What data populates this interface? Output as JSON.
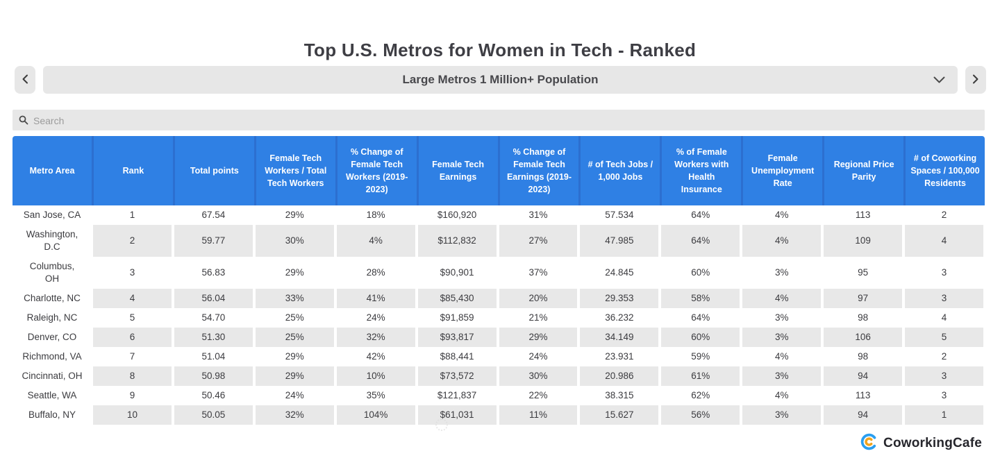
{
  "page": {
    "title": "Top U.S. Metros for Women in Tech - Ranked"
  },
  "selector": {
    "value": "Large Metros 1 Million+ Population",
    "prev_icon": "chevron-left",
    "next_icon": "chevron-right",
    "expand_icon": "chevron-down"
  },
  "search": {
    "placeholder": "Search",
    "icon": "magnifier"
  },
  "table": {
    "columns": [
      "Metro Area",
      "Rank",
      "Total points",
      "Female Tech Workers / Total Tech Workers",
      "% Change of Female Tech Workers (2019-2023)",
      "Female Tech Earnings",
      "% Change of Female Tech Earnings (2019-2023)",
      "# of Tech Jobs / 1,000 Jobs",
      "% of Female Workers with Health Insurance",
      "Female Unemployment Rate",
      "Regional Price Parity",
      "# of Coworking Spaces / 100,000 Residents"
    ],
    "rows": [
      [
        "San Jose, CA",
        "1",
        "67.54",
        "29%",
        "18%",
        "$160,920",
        "31%",
        "57.534",
        "64%",
        "4%",
        "113",
        "2"
      ],
      [
        "Washington, D.C",
        "2",
        "59.77",
        "30%",
        "4%",
        "$112,832",
        "27%",
        "47.985",
        "64%",
        "4%",
        "109",
        "4"
      ],
      [
        "Columbus, OH",
        "3",
        "56.83",
        "29%",
        "28%",
        "$90,901",
        "37%",
        "24.845",
        "60%",
        "3%",
        "95",
        "3"
      ],
      [
        "Charlotte, NC",
        "4",
        "56.04",
        "33%",
        "41%",
        "$85,430",
        "20%",
        "29.353",
        "58%",
        "4%",
        "97",
        "3"
      ],
      [
        "Raleigh, NC",
        "5",
        "54.70",
        "25%",
        "24%",
        "$91,859",
        "21%",
        "36.232",
        "64%",
        "3%",
        "98",
        "4"
      ],
      [
        "Denver, CO",
        "6",
        "51.30",
        "25%",
        "32%",
        "$93,817",
        "29%",
        "34.149",
        "60%",
        "3%",
        "106",
        "5"
      ],
      [
        "Richmond, VA",
        "7",
        "51.04",
        "29%",
        "42%",
        "$88,441",
        "24%",
        "23.931",
        "59%",
        "4%",
        "98",
        "2"
      ],
      [
        "Cincinnati, OH",
        "8",
        "50.98",
        "29%",
        "10%",
        "$73,572",
        "30%",
        "20.986",
        "61%",
        "3%",
        "94",
        "3"
      ],
      [
        "Seattle, WA",
        "9",
        "50.46",
        "24%",
        "35%",
        "$121,837",
        "22%",
        "38.315",
        "62%",
        "4%",
        "113",
        "3"
      ],
      [
        "Buffalo, NY",
        "10",
        "50.05",
        "32%",
        "104%",
        "$61,031",
        "11%",
        "15.627",
        "56%",
        "3%",
        "94",
        "1"
      ]
    ]
  },
  "footer": {
    "brand": "CoworkingCafe"
  },
  "colors": {
    "header_bg": "#2f80e4",
    "header_divider": "#2c6fd0",
    "header_text": "#ffffff",
    "row_stripe": "#e8e8e8",
    "control_bg": "#e7e7e7",
    "title_text": "#3e3e44",
    "cell_text": "#3b3b3f",
    "logo_blue": "#2b9ff0",
    "logo_orange": "#f2a41c"
  }
}
